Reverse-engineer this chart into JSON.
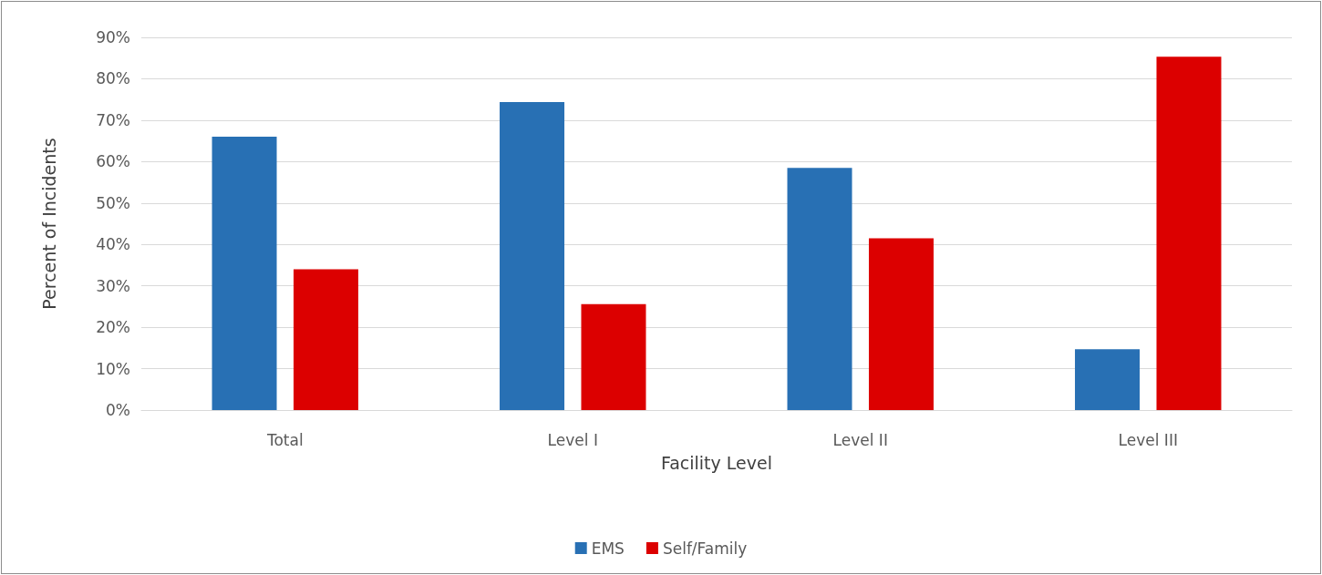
{
  "chart_data": {
    "type": "bar",
    "xlabel": "Facility Level",
    "ylabel": "Percent of Incidents",
    "categories": [
      "Total",
      "Level I",
      "Level II",
      "Level III"
    ],
    "series": [
      {
        "name": "EMS",
        "color": "#2870b4",
        "values": [
          66,
          74.4,
          58.5,
          14.7
        ]
      },
      {
        "name": "Self/Family",
        "color": "#dc0000",
        "values": [
          34,
          25.6,
          41.5,
          85.3
        ]
      }
    ],
    "ylim": [
      0,
      90
    ],
    "yticks": [
      {
        "value": 0,
        "label": "0%"
      },
      {
        "value": 10,
        "label": "10%"
      },
      {
        "value": 20,
        "label": "20%"
      },
      {
        "value": 30,
        "label": "30%"
      },
      {
        "value": 40,
        "label": "40%"
      },
      {
        "value": 50,
        "label": "50%"
      },
      {
        "value": 60,
        "label": "60%"
      },
      {
        "value": 70,
        "label": "70%"
      },
      {
        "value": 80,
        "label": "80%"
      },
      {
        "value": 90,
        "label": "90%"
      }
    ],
    "grid": "y",
    "legend": "bottom"
  }
}
